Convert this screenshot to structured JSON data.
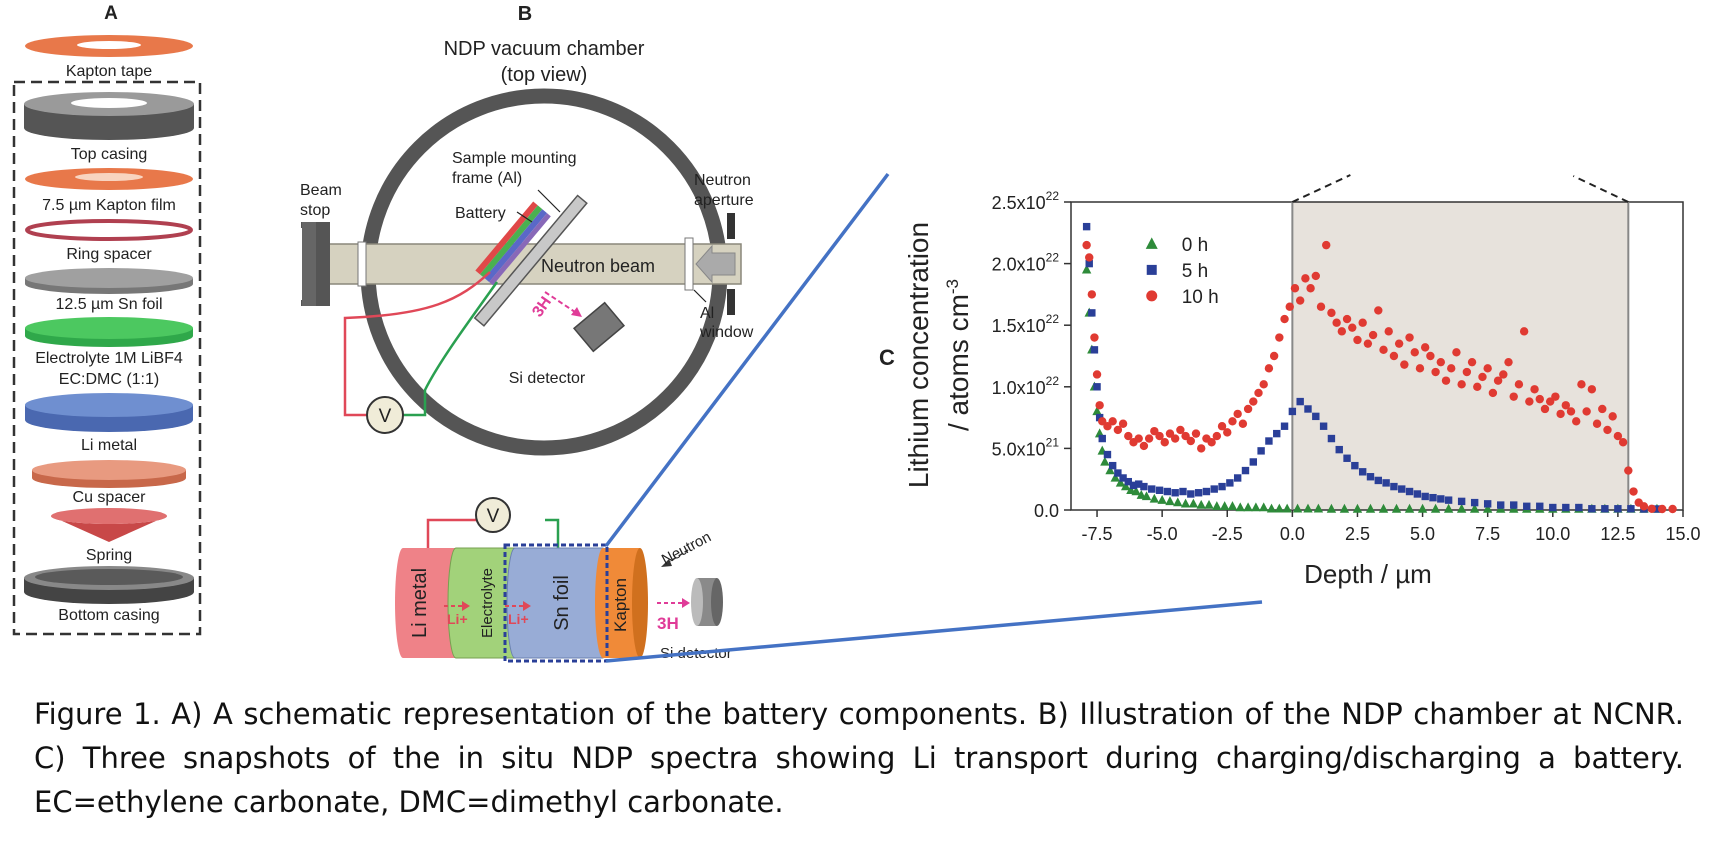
{
  "panel_a": {
    "letter": "A",
    "components": [
      "Kapton tape",
      "Top casing",
      "7.5 µm Kapton film",
      "Ring spacer",
      "12.5 µm Sn foil",
      "Electrolyte 1M LiBF4",
      "EC:DMC (1:1)",
      "Li metal",
      "Cu spacer",
      "Spring",
      "Bottom casing"
    ]
  },
  "panel_b": {
    "letter": "B",
    "title_line1": "NDP vacuum chamber",
    "title_line2": "(top view)",
    "beam_stop": [
      "Beam",
      "stop"
    ],
    "frame": [
      "Sample mounting",
      "frame (Al)"
    ],
    "battery": "Battery",
    "neutron_aperture": [
      "Neutron",
      "aperture"
    ],
    "neutron_beam": "Neutron beam",
    "triton": "3H",
    "al_window": [
      "Al",
      "window"
    ],
    "si_detector": "Si detector",
    "voltmeter": "V",
    "cell_layers": [
      "Li metal",
      "Electrolyte",
      "Sn foil",
      "Kapton"
    ],
    "li_ion": "Li+",
    "neutron": "Neutron",
    "detector_label": "Si detector"
  },
  "panel_c": {
    "letter": "C",
    "ylabel_line1": "Lithium concentration",
    "ylabel_line2": "/ atoms cm",
    "ylabel_exp": "-3",
    "xlabel": "Depth / µm"
  },
  "chart_data": {
    "type": "scatter",
    "xlabel": "Depth / µm",
    "ylabel": "Lithium concentration / atoms cm-3",
    "xlim": [
      -8.5,
      15.0
    ],
    "ylim": [
      0,
      2.5e+22
    ],
    "x_ticks": [
      "-7.5",
      "-5.0",
      "-2.5",
      "0.0",
      "2.5",
      "5.0",
      "7.5",
      "10.0",
      "12.5",
      "15.0"
    ],
    "y_ticks": [
      {
        "base": "0.0",
        "exp": ""
      },
      {
        "base": "5.0x10",
        "exp": "21"
      },
      {
        "base": "1.0x10",
        "exp": "22"
      },
      {
        "base": "1.5x10",
        "exp": "22"
      },
      {
        "base": "2.0x10",
        "exp": "22"
      },
      {
        "base": "2.5x10",
        "exp": "22"
      }
    ],
    "shaded_region": [
      0.0,
      12.9
    ],
    "legend_position": "top-left",
    "grid": false,
    "series": [
      {
        "name": "0 h",
        "color": "#2e8b3a",
        "marker": "triangle",
        "points": [
          [
            -7.9,
            1.95e+22
          ],
          [
            -7.8,
            1.6e+22
          ],
          [
            -7.7,
            1.3e+22
          ],
          [
            -7.6,
            1e+22
          ],
          [
            -7.5,
            8e+21
          ],
          [
            -7.4,
            6.2e+21
          ],
          [
            -7.3,
            4.8e+21
          ],
          [
            -7.2,
            3.9e+21
          ],
          [
            -7.0,
            3.2e+21
          ],
          [
            -6.8,
            2.6e+21
          ],
          [
            -6.6,
            2.2e+21
          ],
          [
            -6.4,
            1.9e+21
          ],
          [
            -6.2,
            1.6e+21
          ],
          [
            -6.0,
            1.5e+21
          ],
          [
            -5.8,
            1.2e+21
          ],
          [
            -5.6,
            1.1e+21
          ],
          [
            -5.3,
            9e+20
          ],
          [
            -5.0,
            8e+20
          ],
          [
            -4.7,
            7e+20
          ],
          [
            -4.4,
            6e+20
          ],
          [
            -4.1,
            5e+20
          ],
          [
            -3.8,
            5e+20
          ],
          [
            -3.5,
            4e+20
          ],
          [
            -3.2,
            4e+20
          ],
          [
            -2.9,
            3e+20
          ],
          [
            -2.6,
            3e+20
          ],
          [
            -2.3,
            3e+20
          ],
          [
            -2.0,
            2e+20
          ],
          [
            -1.7,
            2e+20
          ],
          [
            -1.4,
            2e+20
          ],
          [
            -1.1,
            2e+20
          ],
          [
            -0.8,
            1e+20
          ],
          [
            -0.5,
            1e+20
          ],
          [
            -0.2,
            1e+20
          ],
          [
            0.2,
            1e+20
          ],
          [
            0.6,
            1e+20
          ],
          [
            1.0,
            1e+20
          ],
          [
            1.5,
            0
          ],
          [
            2.0,
            0
          ],
          [
            2.5,
            0
          ],
          [
            3.0,
            0
          ],
          [
            3.5,
            0
          ],
          [
            4.0,
            0
          ],
          [
            4.5,
            0
          ],
          [
            5.0,
            0
          ],
          [
            5.5,
            0
          ],
          [
            6.0,
            0
          ],
          [
            6.5,
            0
          ],
          [
            7.0,
            0
          ],
          [
            7.5,
            0
          ],
          [
            8.0,
            0
          ],
          [
            8.5,
            0
          ],
          [
            9.0,
            0
          ],
          [
            9.5,
            0
          ],
          [
            10.0,
            0
          ],
          [
            10.5,
            0
          ],
          [
            11.0,
            0
          ],
          [
            11.5,
            0
          ],
          [
            12.0,
            0
          ],
          [
            12.5,
            0
          ],
          [
            13.0,
            0
          ],
          [
            13.5,
            0
          ],
          [
            14.0,
            0
          ]
        ]
      },
      {
        "name": "5 h",
        "color": "#2a3f98",
        "marker": "square",
        "points": [
          [
            -7.9,
            2.3e+22
          ],
          [
            -7.8,
            2e+22
          ],
          [
            -7.7,
            1.6e+22
          ],
          [
            -7.6,
            1.3e+22
          ],
          [
            -7.5,
            1e+22
          ],
          [
            -7.4,
            7.5e+21
          ],
          [
            -7.3,
            5.8e+21
          ],
          [
            -7.1,
            4.5e+21
          ],
          [
            -6.9,
            3.6e+21
          ],
          [
            -6.7,
            3e+21
          ],
          [
            -6.5,
            2.6e+21
          ],
          [
            -6.3,
            2.3e+21
          ],
          [
            -6.1,
            2e+21
          ],
          [
            -5.9,
            2.1e+21
          ],
          [
            -5.7,
            1.9e+21
          ],
          [
            -5.4,
            1.7e+21
          ],
          [
            -5.1,
            1.6e+21
          ],
          [
            -4.8,
            1.5e+21
          ],
          [
            -4.5,
            1.4e+21
          ],
          [
            -4.2,
            1.5e+21
          ],
          [
            -3.9,
            1.3e+21
          ],
          [
            -3.6,
            1.4e+21
          ],
          [
            -3.3,
            1.5e+21
          ],
          [
            -3.0,
            1.7e+21
          ],
          [
            -2.7,
            1.9e+21
          ],
          [
            -2.4,
            2.2e+21
          ],
          [
            -2.1,
            2.6e+21
          ],
          [
            -1.8,
            3.2e+21
          ],
          [
            -1.5,
            3.9e+21
          ],
          [
            -1.2,
            4.8e+21
          ],
          [
            -0.9,
            5.6e+21
          ],
          [
            -0.6,
            6.2e+21
          ],
          [
            -0.3,
            6.8e+21
          ],
          [
            0.0,
            8e+21
          ],
          [
            0.3,
            8.8e+21
          ],
          [
            0.6,
            8.2e+21
          ],
          [
            0.9,
            7.6e+21
          ],
          [
            1.2,
            6.8e+21
          ],
          [
            1.5,
            5.8e+21
          ],
          [
            1.8,
            4.9e+21
          ],
          [
            2.1,
            4.2e+21
          ],
          [
            2.4,
            3.6e+21
          ],
          [
            2.7,
            3.1e+21
          ],
          [
            3.0,
            2.7e+21
          ],
          [
            3.3,
            2.4e+21
          ],
          [
            3.6,
            2.2e+21
          ],
          [
            3.9,
            1.9e+21
          ],
          [
            4.2,
            1.7e+21
          ],
          [
            4.5,
            1.5e+21
          ],
          [
            4.8,
            1.3e+21
          ],
          [
            5.1,
            1.1e+21
          ],
          [
            5.4,
            1e+21
          ],
          [
            5.7,
            9e+20
          ],
          [
            6.0,
            8e+20
          ],
          [
            6.5,
            7e+20
          ],
          [
            7.0,
            6e+20
          ],
          [
            7.5,
            5e+20
          ],
          [
            8.0,
            4e+20
          ],
          [
            8.5,
            4e+20
          ],
          [
            9.0,
            3e+20
          ],
          [
            9.5,
            3e+20
          ],
          [
            10.0,
            2e+20
          ],
          [
            10.5,
            2e+20
          ],
          [
            11.0,
            2e+20
          ],
          [
            11.5,
            1e+20
          ],
          [
            12.0,
            1e+20
          ],
          [
            12.5,
            1e+20
          ],
          [
            13.0,
            1e+20
          ],
          [
            13.5,
            0
          ],
          [
            14.0,
            0
          ]
        ]
      },
      {
        "name": "10 h",
        "color": "#e03a32",
        "marker": "circle",
        "points": [
          [
            -7.9,
            2.15e+22
          ],
          [
            -7.8,
            2.05e+22
          ],
          [
            -7.7,
            1.75e+22
          ],
          [
            -7.6,
            1.4e+22
          ],
          [
            -7.5,
            1.1e+22
          ],
          [
            -7.4,
            8.5e+21
          ],
          [
            -7.3,
            7.2e+21
          ],
          [
            -7.1,
            6.8e+21
          ],
          [
            -6.9,
            7.2e+21
          ],
          [
            -6.7,
            6.5e+21
          ],
          [
            -6.5,
            7e+21
          ],
          [
            -6.3,
            6e+21
          ],
          [
            -6.1,
            5.5e+21
          ],
          [
            -5.9,
            5.8e+21
          ],
          [
            -5.7,
            5.2e+21
          ],
          [
            -5.5,
            5.8e+21
          ],
          [
            -5.3,
            6.4e+21
          ],
          [
            -5.1,
            6e+21
          ],
          [
            -4.9,
            5.5e+21
          ],
          [
            -4.7,
            6.2e+21
          ],
          [
            -4.5,
            5.8e+21
          ],
          [
            -4.3,
            6.5e+21
          ],
          [
            -4.1,
            6e+21
          ],
          [
            -3.9,
            5.6e+21
          ],
          [
            -3.7,
            6.2e+21
          ],
          [
            -3.5,
            5e+21
          ],
          [
            -3.3,
            5.8e+21
          ],
          [
            -3.1,
            5.5e+21
          ],
          [
            -2.9,
            6e+21
          ],
          [
            -2.7,
            6.8e+21
          ],
          [
            -2.5,
            6.3e+21
          ],
          [
            -2.3,
            7.2e+21
          ],
          [
            -2.1,
            7.8e+21
          ],
          [
            -1.9,
            7e+21
          ],
          [
            -1.7,
            8.2e+21
          ],
          [
            -1.5,
            8.8e+21
          ],
          [
            -1.3,
            9.5e+21
          ],
          [
            -1.1,
            1.02e+22
          ],
          [
            -0.9,
            1.15e+22
          ],
          [
            -0.7,
            1.25e+22
          ],
          [
            -0.5,
            1.4e+22
          ],
          [
            -0.3,
            1.55e+22
          ],
          [
            -0.1,
            1.65e+22
          ],
          [
            0.1,
            1.8e+22
          ],
          [
            0.3,
            1.7e+22
          ],
          [
            0.5,
            1.88e+22
          ],
          [
            0.7,
            1.8e+22
          ],
          [
            0.9,
            1.9e+22
          ],
          [
            1.1,
            1.65e+22
          ],
          [
            1.3,
            2.15e+22
          ],
          [
            1.5,
            1.6e+22
          ],
          [
            1.7,
            1.52e+22
          ],
          [
            1.9,
            1.45e+22
          ],
          [
            2.1,
            1.55e+22
          ],
          [
            2.3,
            1.48e+22
          ],
          [
            2.5,
            1.38e+22
          ],
          [
            2.7,
            1.52e+22
          ],
          [
            2.9,
            1.35e+22
          ],
          [
            3.1,
            1.42e+22
          ],
          [
            3.3,
            1.62e+22
          ],
          [
            3.5,
            1.3e+22
          ],
          [
            3.7,
            1.45e+22
          ],
          [
            3.9,
            1.25e+22
          ],
          [
            4.1,
            1.35e+22
          ],
          [
            4.3,
            1.18e+22
          ],
          [
            4.5,
            1.4e+22
          ],
          [
            4.7,
            1.28e+22
          ],
          [
            4.9,
            1.15e+22
          ],
          [
            5.1,
            1.32e+22
          ],
          [
            5.3,
            1.25e+22
          ],
          [
            5.5,
            1.12e+22
          ],
          [
            5.7,
            1.2e+22
          ],
          [
            5.9,
            1.05e+22
          ],
          [
            6.1,
            1.15e+22
          ],
          [
            6.3,
            1.28e+22
          ],
          [
            6.5,
            1.02e+22
          ],
          [
            6.7,
            1.12e+22
          ],
          [
            6.9,
            1.2e+22
          ],
          [
            7.1,
            1e+22
          ],
          [
            7.3,
            1.08e+22
          ],
          [
            7.5,
            1.15e+22
          ],
          [
            7.7,
            9.5e+21
          ],
          [
            7.9,
            1.05e+22
          ],
          [
            8.1,
            1.1e+22
          ],
          [
            8.3,
            1.2e+22
          ],
          [
            8.5,
            9.2e+21
          ],
          [
            8.7,
            1.02e+22
          ],
          [
            8.9,
            1.45e+22
          ],
          [
            9.1,
            8.8e+21
          ],
          [
            9.3,
            9.8e+21
          ],
          [
            9.5,
            9e+21
          ],
          [
            9.7,
            8.2e+21
          ],
          [
            9.9,
            8.8e+21
          ],
          [
            10.1,
            9.2e+21
          ],
          [
            10.3,
            7.8e+21
          ],
          [
            10.5,
            8.5e+21
          ],
          [
            10.7,
            8e+21
          ],
          [
            10.9,
            7.2e+21
          ],
          [
            11.1,
            1.02e+22
          ],
          [
            11.3,
            8e+21
          ],
          [
            11.5,
            9.8e+21
          ],
          [
            11.7,
            7e+21
          ],
          [
            11.9,
            8.2e+21
          ],
          [
            12.1,
            6.5e+21
          ],
          [
            12.3,
            7.6e+21
          ],
          [
            12.5,
            6e+21
          ],
          [
            12.7,
            5.5e+21
          ],
          [
            12.9,
            3.2e+21
          ],
          [
            13.1,
            1.5e+21
          ],
          [
            13.3,
            6e+20
          ],
          [
            13.5,
            3e+20
          ],
          [
            13.8,
            1e+20
          ],
          [
            14.2,
            0
          ],
          [
            14.6,
            0
          ]
        ]
      }
    ]
  },
  "caption": "Figure 1. A) A schematic representation of the battery components. B) Illustration of the NDP chamber at NCNR. C) Three snapshots of the in situ NDP spectra showing Li transport during charging/discharging a battery. EC=ethylene carbonate, DMC=dimethyl carbonate."
}
